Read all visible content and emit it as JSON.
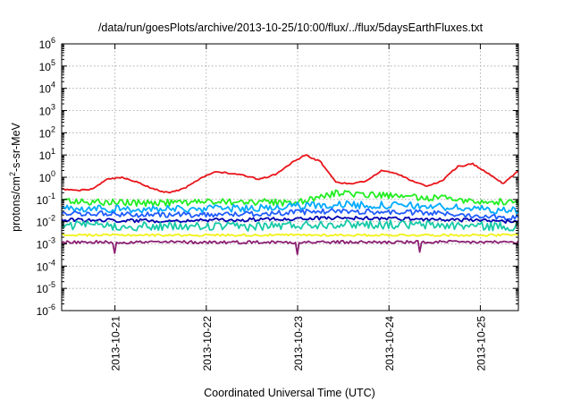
{
  "chart_data": {
    "type": "line",
    "title": "/data/run/goesPlots/archive/2013-10-25/10:00/flux/../flux/5daysEarthFluxes.txt",
    "xlabel": "Coordinated Universal Time (UTC)",
    "ylabel": "protons/cm²-s-sr-MeV",
    "ylabel_parts": {
      "pre": "protons/cm",
      "sup": "2",
      "post": "-s-sr-MeV"
    },
    "y_scale": "log",
    "ylim": [
      1e-06,
      1000000.0
    ],
    "xlim": [
      "2013-10-20T10:00",
      "2013-10-25T10:00"
    ],
    "grid": true,
    "legend": "none",
    "x_ticks": [
      "2013-10-21",
      "2013-10-22",
      "2013-10-23",
      "2013-10-24",
      "2013-10-25"
    ],
    "y_ticks": [
      {
        "base": "10",
        "exp": "-6"
      },
      {
        "base": "10",
        "exp": "-5"
      },
      {
        "base": "10",
        "exp": "-4"
      },
      {
        "base": "10",
        "exp": "-3"
      },
      {
        "base": "10",
        "exp": "-2"
      },
      {
        "base": "10",
        "exp": "-1"
      },
      {
        "base": "10",
        "exp": "0"
      },
      {
        "base": "10",
        "exp": "1"
      },
      {
        "base": "10",
        "exp": "2"
      },
      {
        "base": "10",
        "exp": "3"
      },
      {
        "base": "10",
        "exp": "4"
      },
      {
        "base": "10",
        "exp": "5"
      },
      {
        "base": "10",
        "exp": "6"
      }
    ],
    "series": [
      {
        "color": "#e8151b",
        "noise": 0.03,
        "spikes": [],
        "x": [
          "2013-10-20T10:00",
          "2013-10-20T14:00",
          "2013-10-20T18:00",
          "2013-10-20T22:00",
          "2013-10-21T02:00",
          "2013-10-21T06:00",
          "2013-10-21T10:00",
          "2013-10-21T14:00",
          "2013-10-21T18:00",
          "2013-10-21T22:00",
          "2013-10-22T02:00",
          "2013-10-22T06:00",
          "2013-10-22T10:00",
          "2013-10-22T14:00",
          "2013-10-22T18:00",
          "2013-10-22T22:00",
          "2013-10-23T02:00",
          "2013-10-23T06:00",
          "2013-10-23T10:00",
          "2013-10-23T14:00",
          "2013-10-23T18:00",
          "2013-10-23T22:00",
          "2013-10-24T02:00",
          "2013-10-24T06:00",
          "2013-10-24T10:00",
          "2013-10-24T14:00",
          "2013-10-24T18:00",
          "2013-10-24T22:00",
          "2013-10-25T02:00",
          "2013-10-25T06:00",
          "2013-10-25T10:00"
        ],
        "y": [
          0.3,
          0.25,
          0.3,
          0.8,
          1.0,
          0.6,
          0.3,
          0.2,
          0.3,
          0.8,
          1.8,
          1.5,
          1.2,
          0.8,
          1.3,
          4,
          10,
          5,
          0.6,
          0.5,
          0.7,
          2,
          1.5,
          0.7,
          0.4,
          0.7,
          3,
          4,
          1.5,
          0.5,
          2
        ]
      },
      {
        "color": "#22ee22",
        "noise": 0.15,
        "spikes": [],
        "x": [
          "2013-10-20T10:00",
          "2013-10-21T10:00",
          "2013-10-22T10:00",
          "2013-10-23T00:00",
          "2013-10-23T10:00",
          "2013-10-24T10:00",
          "2013-10-25T10:00"
        ],
        "y": [
          0.08,
          0.07,
          0.08,
          0.07,
          0.2,
          0.12,
          0.07
        ]
      },
      {
        "color": "#00aaff",
        "noise": 0.17,
        "spikes": [],
        "x": [
          "2013-10-20T10:00",
          "2013-10-21T10:00",
          "2013-10-22T10:00",
          "2013-10-23T10:00",
          "2013-10-24T10:00",
          "2013-10-25T10:00"
        ],
        "y": [
          0.04,
          0.035,
          0.04,
          0.06,
          0.05,
          0.03
        ]
      },
      {
        "color": "#1f5cff",
        "noise": 0.12,
        "spikes": [],
        "x": [
          "2013-10-20T10:00",
          "2013-10-21T10:00",
          "2013-10-22T10:00",
          "2013-10-23T10:00",
          "2013-10-24T10:00",
          "2013-10-25T10:00"
        ],
        "y": [
          0.025,
          0.02,
          0.022,
          0.03,
          0.025,
          0.015
        ]
      },
      {
        "color": "#0000b0",
        "noise": 0.08,
        "spikes": [],
        "x": [
          "2013-10-20T10:00",
          "2013-10-21T10:00",
          "2013-10-22T10:00",
          "2013-10-23T10:00",
          "2013-10-24T10:00",
          "2013-10-25T10:00"
        ],
        "y": [
          0.012,
          0.011,
          0.012,
          0.015,
          0.013,
          0.01
        ]
      },
      {
        "color": "#17c9a8",
        "noise": 0.2,
        "spikes": [],
        "x": [
          "2013-10-20T10:00",
          "2013-10-21T10:00",
          "2013-10-22T10:00",
          "2013-10-23T10:00",
          "2013-10-24T10:00",
          "2013-10-25T10:00"
        ],
        "y": [
          0.007,
          0.006,
          0.006,
          0.008,
          0.007,
          0.006
        ]
      },
      {
        "color": "#f2f21a",
        "noise": 0.05,
        "spikes": [],
        "x": [
          "2013-10-20T10:00",
          "2013-10-22T10:00",
          "2013-10-25T10:00"
        ],
        "y": [
          0.0025,
          0.0025,
          0.0025
        ]
      },
      {
        "color": "#8b1f72",
        "noise": 0.07,
        "spikes": [
          "2013-10-21T00:00",
          "2013-10-23T00:00",
          "2013-10-24T08:00"
        ],
        "x": [
          "2013-10-20T10:00",
          "2013-10-22T10:00",
          "2013-10-25T10:00"
        ],
        "y": [
          0.0012,
          0.0012,
          0.0012
        ]
      }
    ]
  }
}
